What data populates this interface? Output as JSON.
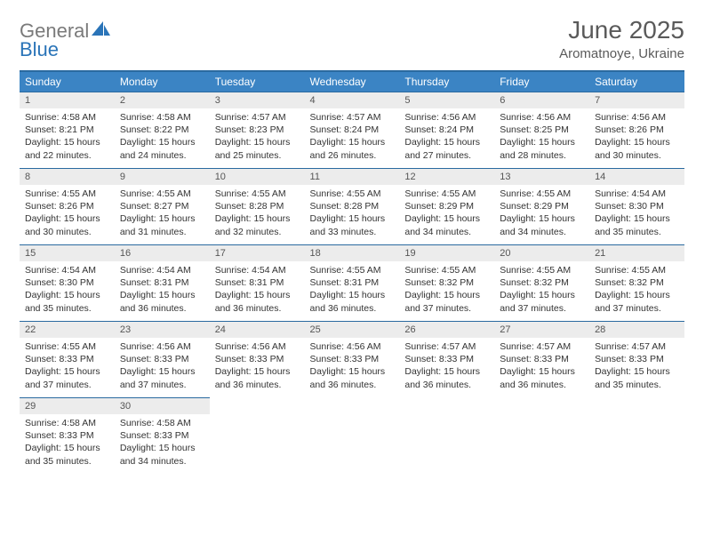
{
  "brand": {
    "word1": "General",
    "word2": "Blue"
  },
  "title": {
    "month": "June 2025",
    "location": "Aromatnoye, Ukraine"
  },
  "colors": {
    "header_bg": "#3b84c4",
    "header_border": "#2a6aa0",
    "daynum_bg": "#ececec",
    "text": "#333333",
    "brand_gray": "#7a7a7a",
    "brand_blue": "#2a74b8"
  },
  "weekdays": [
    "Sunday",
    "Monday",
    "Tuesday",
    "Wednesday",
    "Thursday",
    "Friday",
    "Saturday"
  ],
  "days": [
    {
      "n": "1",
      "sr": "4:58 AM",
      "ss": "8:21 PM",
      "dl": "15 hours and 22 minutes."
    },
    {
      "n": "2",
      "sr": "4:58 AM",
      "ss": "8:22 PM",
      "dl": "15 hours and 24 minutes."
    },
    {
      "n": "3",
      "sr": "4:57 AM",
      "ss": "8:23 PM",
      "dl": "15 hours and 25 minutes."
    },
    {
      "n": "4",
      "sr": "4:57 AM",
      "ss": "8:24 PM",
      "dl": "15 hours and 26 minutes."
    },
    {
      "n": "5",
      "sr": "4:56 AM",
      "ss": "8:24 PM",
      "dl": "15 hours and 27 minutes."
    },
    {
      "n": "6",
      "sr": "4:56 AM",
      "ss": "8:25 PM",
      "dl": "15 hours and 28 minutes."
    },
    {
      "n": "7",
      "sr": "4:56 AM",
      "ss": "8:26 PM",
      "dl": "15 hours and 30 minutes."
    },
    {
      "n": "8",
      "sr": "4:55 AM",
      "ss": "8:26 PM",
      "dl": "15 hours and 30 minutes."
    },
    {
      "n": "9",
      "sr": "4:55 AM",
      "ss": "8:27 PM",
      "dl": "15 hours and 31 minutes."
    },
    {
      "n": "10",
      "sr": "4:55 AM",
      "ss": "8:28 PM",
      "dl": "15 hours and 32 minutes."
    },
    {
      "n": "11",
      "sr": "4:55 AM",
      "ss": "8:28 PM",
      "dl": "15 hours and 33 minutes."
    },
    {
      "n": "12",
      "sr": "4:55 AM",
      "ss": "8:29 PM",
      "dl": "15 hours and 34 minutes."
    },
    {
      "n": "13",
      "sr": "4:55 AM",
      "ss": "8:29 PM",
      "dl": "15 hours and 34 minutes."
    },
    {
      "n": "14",
      "sr": "4:54 AM",
      "ss": "8:30 PM",
      "dl": "15 hours and 35 minutes."
    },
    {
      "n": "15",
      "sr": "4:54 AM",
      "ss": "8:30 PM",
      "dl": "15 hours and 35 minutes."
    },
    {
      "n": "16",
      "sr": "4:54 AM",
      "ss": "8:31 PM",
      "dl": "15 hours and 36 minutes."
    },
    {
      "n": "17",
      "sr": "4:54 AM",
      "ss": "8:31 PM",
      "dl": "15 hours and 36 minutes."
    },
    {
      "n": "18",
      "sr": "4:55 AM",
      "ss": "8:31 PM",
      "dl": "15 hours and 36 minutes."
    },
    {
      "n": "19",
      "sr": "4:55 AM",
      "ss": "8:32 PM",
      "dl": "15 hours and 37 minutes."
    },
    {
      "n": "20",
      "sr": "4:55 AM",
      "ss": "8:32 PM",
      "dl": "15 hours and 37 minutes."
    },
    {
      "n": "21",
      "sr": "4:55 AM",
      "ss": "8:32 PM",
      "dl": "15 hours and 37 minutes."
    },
    {
      "n": "22",
      "sr": "4:55 AM",
      "ss": "8:33 PM",
      "dl": "15 hours and 37 minutes."
    },
    {
      "n": "23",
      "sr": "4:56 AM",
      "ss": "8:33 PM",
      "dl": "15 hours and 37 minutes."
    },
    {
      "n": "24",
      "sr": "4:56 AM",
      "ss": "8:33 PM",
      "dl": "15 hours and 36 minutes."
    },
    {
      "n": "25",
      "sr": "4:56 AM",
      "ss": "8:33 PM",
      "dl": "15 hours and 36 minutes."
    },
    {
      "n": "26",
      "sr": "4:57 AM",
      "ss": "8:33 PM",
      "dl": "15 hours and 36 minutes."
    },
    {
      "n": "27",
      "sr": "4:57 AM",
      "ss": "8:33 PM",
      "dl": "15 hours and 36 minutes."
    },
    {
      "n": "28",
      "sr": "4:57 AM",
      "ss": "8:33 PM",
      "dl": "15 hours and 35 minutes."
    },
    {
      "n": "29",
      "sr": "4:58 AM",
      "ss": "8:33 PM",
      "dl": "15 hours and 35 minutes."
    },
    {
      "n": "30",
      "sr": "4:58 AM",
      "ss": "8:33 PM",
      "dl": "15 hours and 34 minutes."
    }
  ],
  "labels": {
    "sunrise": "Sunrise:",
    "sunset": "Sunset:",
    "daylight": "Daylight:"
  }
}
